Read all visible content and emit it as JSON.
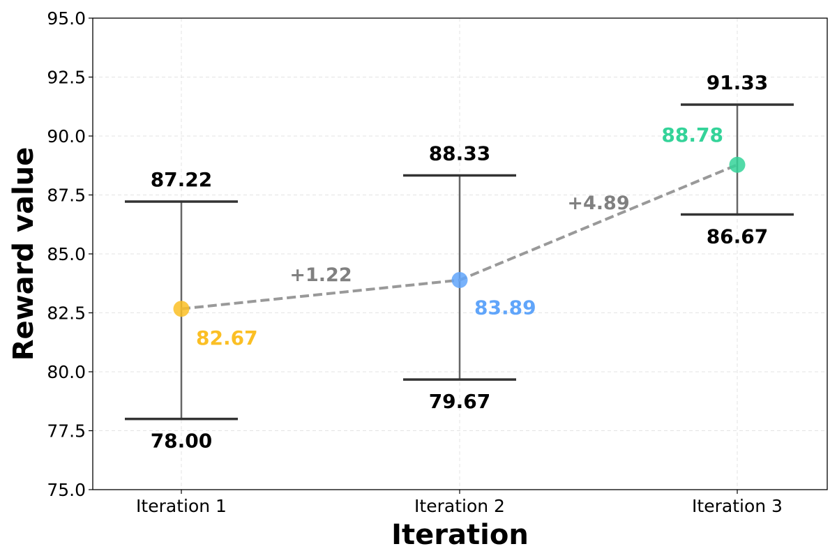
{
  "chart_data": {
    "type": "errorbar",
    "title": "",
    "xlabel": "Iteration",
    "ylabel": "Reward value",
    "categories": [
      "Iteration 1",
      "Iteration 2",
      "Iteration 3"
    ],
    "mean": [
      82.67,
      83.89,
      88.78
    ],
    "mean_labels": [
      "82.67",
      "83.89",
      "88.78"
    ],
    "min": [
      78.0,
      79.67,
      86.67
    ],
    "min_labels": [
      "78.00",
      "79.67",
      "86.67"
    ],
    "max": [
      87.22,
      88.33,
      91.33
    ],
    "max_labels": [
      "87.22",
      "88.33",
      "91.33"
    ],
    "deltas": [
      "+1.22",
      "+4.89"
    ],
    "point_colors": [
      "#FBBF24",
      "#60A5FA",
      "#34D399"
    ],
    "ylim": [
      75.0,
      95.0
    ],
    "yticks": [
      75.0,
      77.5,
      80.0,
      82.5,
      85.0,
      87.5,
      90.0,
      92.5,
      95.0
    ],
    "ytick_labels": [
      "75.0",
      "77.5",
      "80.0",
      "82.5",
      "85.0",
      "87.5",
      "90.0",
      "92.5",
      "95.0"
    ],
    "grid": true,
    "line_color": "#999999",
    "errorbar_color": "#333333",
    "delta_color": "#808080"
  }
}
